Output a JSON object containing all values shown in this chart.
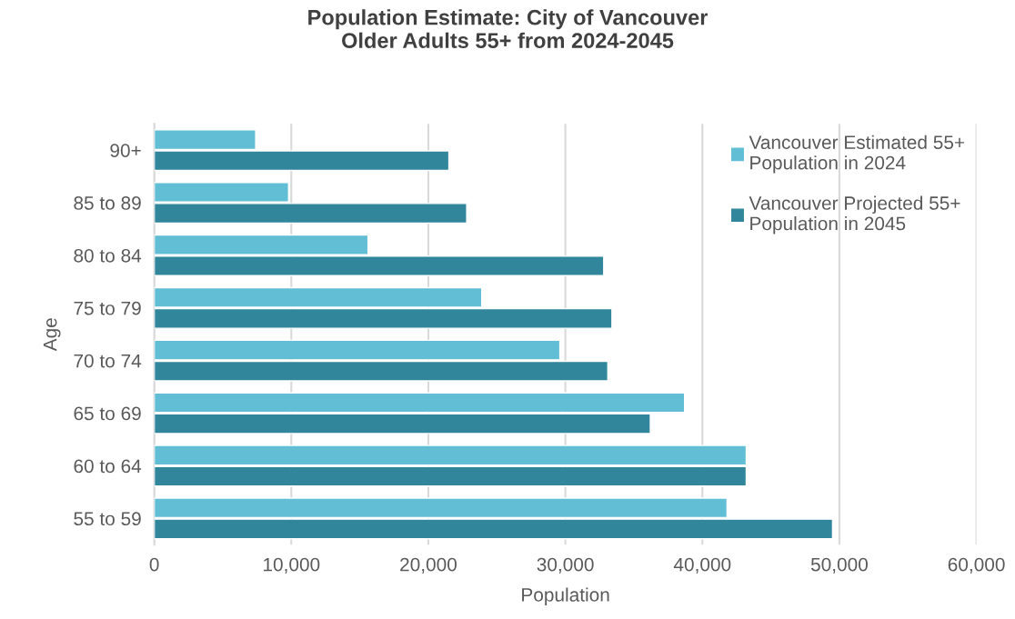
{
  "chart_data": {
    "type": "bar",
    "orientation": "horizontal",
    "title": "Population Estimate: City of Vancouver\nOlder Adults 55+ from 2024-2045",
    "xlabel": "Population",
    "ylabel": "Age",
    "categories": [
      "90+",
      "85 to 89",
      "80 to 84",
      "75 to 79",
      "70 to 74",
      "65 to 69",
      "60 to 64",
      "55 to 59"
    ],
    "series": [
      {
        "name": "Vancouver Estimated 55+\nPopulation in 2024",
        "color": "#62bed5",
        "values": [
          7400,
          9800,
          15600,
          23900,
          29600,
          38700,
          43200,
          41800
        ]
      },
      {
        "name": "Vancouver Projected 55+\nPopulation in 2045",
        "color": "#31869b",
        "values": [
          21500,
          22800,
          32800,
          33400,
          33100,
          36200,
          43200,
          49500
        ]
      }
    ],
    "xlim": [
      0,
      60000
    ],
    "xticks": [
      0,
      {
        "value": 10000,
        "label": "10,000"
      },
      {
        "value": 20000,
        "label": "20,000"
      },
      {
        "value": 30000,
        "label": "30,000"
      },
      {
        "value": 40000,
        "label": "40,000"
      },
      {
        "value": 50000,
        "label": "50,000"
      },
      {
        "value": 60000,
        "label": "60,000"
      }
    ],
    "grid": "x",
    "legend": "top right"
  }
}
